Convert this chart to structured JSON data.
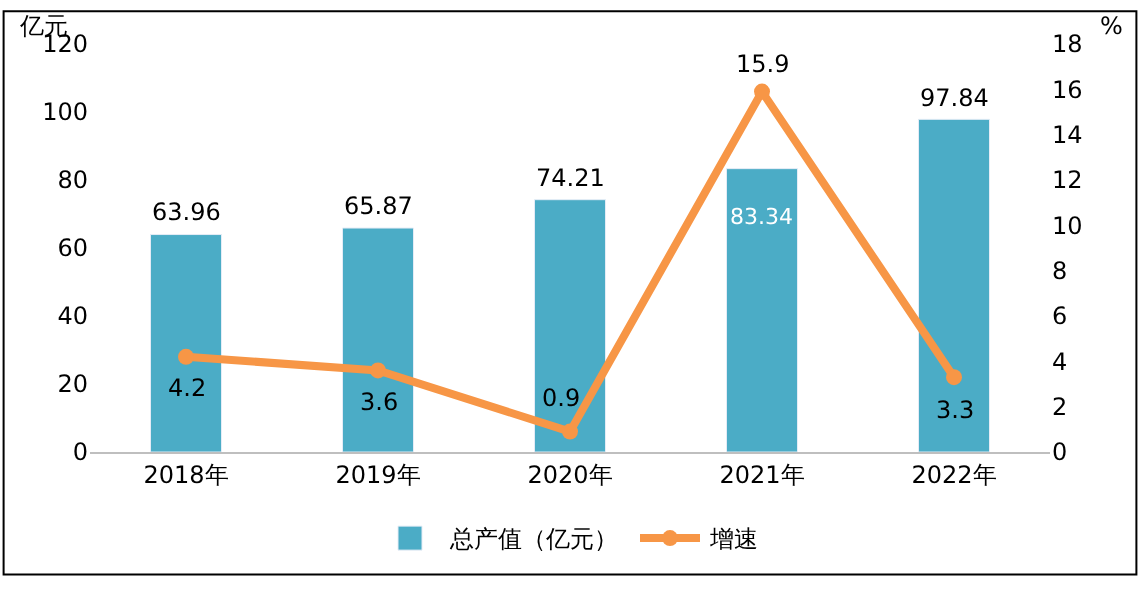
{
  "chart_data": {
    "type": "bar",
    "categories": [
      "2018年",
      "2019年",
      "2020年",
      "2021年",
      "2022年"
    ],
    "series": [
      {
        "name": "总产值（亿元）",
        "color": "#4bacc6",
        "values": [
          63.96,
          65.87,
          74.21,
          83.34,
          97.84
        ]
      },
      {
        "name": "增速",
        "type": "line",
        "axis": "y2",
        "color": "#f79646",
        "values": [
          4.2,
          3.6,
          0.9,
          15.9,
          3.3
        ]
      }
    ],
    "ylabel": "亿元",
    "y2label": "%",
    "ylim": [
      0,
      120
    ],
    "yticks": [
      0,
      20,
      40,
      60,
      80,
      100,
      120
    ],
    "y2lim": [
      0,
      18
    ],
    "y2ticks": [
      0,
      2,
      4,
      6,
      8,
      10,
      12,
      14,
      16,
      18
    ],
    "data_labels": true,
    "marker": "circle",
    "line_style": "solid",
    "legend": "bottom"
  }
}
